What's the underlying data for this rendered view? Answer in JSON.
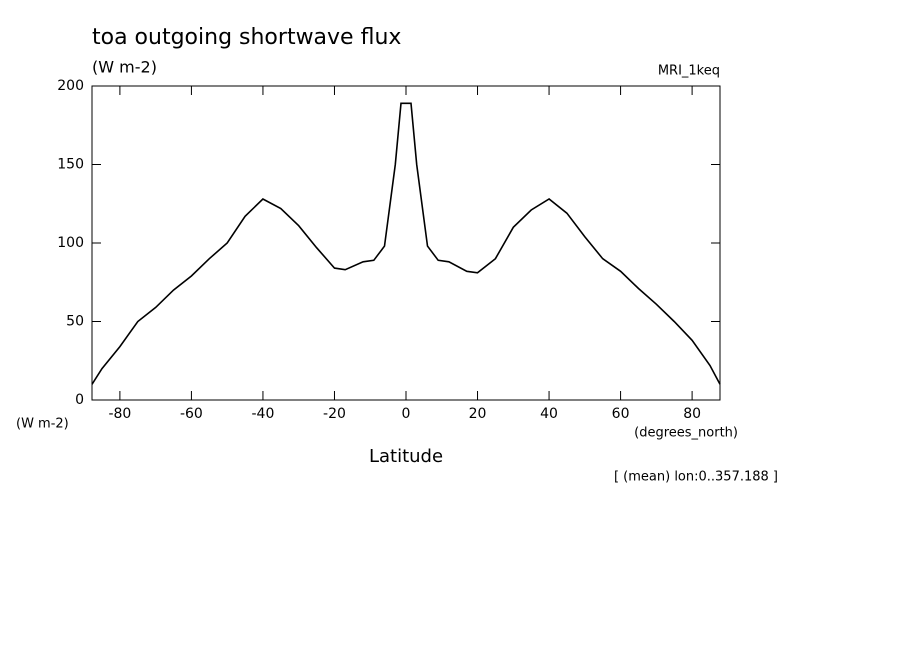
{
  "chart_data": {
    "type": "line",
    "title": "toa outgoing shortwave flux",
    "subtitle": "(W m-2)",
    "annotation": "MRI_1keq",
    "ylabel": "(W m-2)",
    "xunit": "(degrees_north)",
    "xlabel": "Latitude",
    "note": "[ (mean) lon:0..357.188 ]",
    "x": [
      -87.8,
      -85,
      -80,
      -75,
      -70,
      -65,
      -60,
      -55,
      -50,
      -45,
      -40,
      -35,
      -30,
      -25,
      -20,
      -17,
      -12,
      -9,
      -6,
      -3,
      -1.4,
      1.4,
      3,
      6,
      9,
      12,
      17,
      20,
      25,
      30,
      35,
      40,
      45,
      50,
      55,
      60,
      65,
      70,
      75,
      80,
      85,
      87.8
    ],
    "series": [
      {
        "name": "toa outgoing shortwave flux",
        "color": "#000000",
        "values": [
          10,
          20,
          34,
          50,
          59,
          70,
          79,
          90,
          100,
          117,
          128,
          122,
          111,
          97,
          84,
          83,
          88,
          89,
          98,
          150,
          189,
          189,
          150,
          98,
          89,
          88,
          82,
          81,
          90,
          110,
          121,
          128,
          119,
          104,
          90,
          82,
          71,
          61,
          50,
          38,
          22,
          10
        ]
      }
    ],
    "xlim": [
      -87.8,
      87.8
    ],
    "ylim": [
      0,
      200
    ],
    "xticks": [
      -80,
      -60,
      -40,
      -20,
      0,
      20,
      40,
      60,
      80
    ],
    "yticks": [
      0,
      50,
      100,
      150,
      200
    ]
  }
}
